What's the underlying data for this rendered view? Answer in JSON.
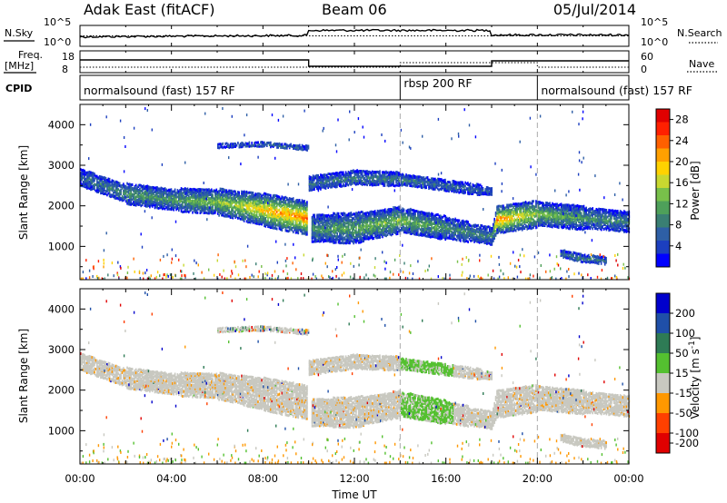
{
  "header": {
    "station": "Adak East (fitACF)",
    "beam": "Beam 06",
    "date": "05/Jul/2014"
  },
  "strip": {
    "nsky_label": "N.Sky",
    "nsky_ticks": [
      "10^5",
      "10^0"
    ],
    "nsearch_label": "N.Search",
    "nsearch_ticks": [
      "10^5",
      "10^0"
    ],
    "freq_label": "Freq.",
    "freq_unit": "[MHz]",
    "freq_ticks": [
      "18",
      "8"
    ],
    "nave_label": "Nave",
    "nave_ticks": [
      "60",
      "0"
    ],
    "cpid_label": "CPID",
    "cpid_modes": [
      {
        "text": "normalsound (fast) 157 RF",
        "start": 0,
        "end": 14
      },
      {
        "text": "rbsp 200 RF",
        "start": 14,
        "end": 20
      },
      {
        "text": "normalsound (fast) 157 RF",
        "start": 20,
        "end": 24
      }
    ]
  },
  "chart_data": [
    {
      "type": "heatmap",
      "parameter": "power",
      "title": "",
      "xlabel": "Time UT",
      "ylabel": "Slant Range [km]",
      "xlim_hours": [
        0,
        24
      ],
      "ylim_km": [
        180,
        4500
      ],
      "x_ticks": [
        "00:00",
        "04:00",
        "08:00",
        "12:00",
        "16:00",
        "20:00",
        "00:00"
      ],
      "y_ticks": [
        "1000",
        "2000",
        "3000",
        "4000"
      ],
      "colorbar": {
        "label": "Power [dB]",
        "ticks": [
          "4",
          "8",
          "12",
          "16",
          "20",
          "24",
          "28"
        ],
        "range": [
          0,
          30
        ],
        "scale": [
          "#0000ff",
          "#1c3fbf",
          "#2e5fa6",
          "#3a7f73",
          "#4ea05a",
          "#78c04a",
          "#c8d830",
          "#ffd200",
          "#ffa000",
          "#ff6000",
          "#ff2000",
          "#e00000"
        ]
      },
      "echo_bands": [
        {
          "id": "main",
          "t": [
            0,
            2,
            4,
            6,
            8,
            9.9,
            10.1,
            12,
            14,
            16,
            18,
            18.2,
            20,
            22,
            24
          ],
          "r": [
            2700,
            2300,
            2150,
            2100,
            1900,
            1700,
            1450,
            1450,
            1650,
            1450,
            1250,
            1650,
            1800,
            1700,
            1600
          ],
          "w": [
            180,
            220,
            250,
            300,
            380,
            420,
            330,
            350,
            300,
            260,
            180,
            330,
            300,
            260,
            220
          ],
          "pk": [
            6,
            10,
            10,
            14,
            20,
            24,
            10,
            12,
            14,
            10,
            8,
            24,
            14,
            10,
            8
          ]
        },
        {
          "id": "upper",
          "t": [
            10,
            12,
            14,
            16,
            18
          ],
          "r": [
            2550,
            2700,
            2650,
            2500,
            2350
          ],
          "w": [
            170,
            180,
            140,
            130,
            90
          ],
          "pk": [
            6,
            8,
            8,
            6,
            5
          ]
        },
        {
          "id": "top",
          "t": [
            6,
            8,
            10
          ],
          "r": [
            3480,
            3520,
            3420
          ],
          "w": [
            50,
            60,
            50
          ],
          "pk": [
            4,
            6,
            4
          ]
        },
        {
          "id": "late",
          "t": [
            21,
            22,
            23
          ],
          "r": [
            820,
            700,
            650
          ],
          "w": [
            80,
            90,
            70
          ],
          "pk": [
            6,
            8,
            6
          ]
        }
      ]
    },
    {
      "type": "heatmap",
      "parameter": "velocity",
      "title": "",
      "xlabel": "Time UT",
      "ylabel": "Slant Range [km]",
      "xlim_hours": [
        0,
        24
      ],
      "ylim_km": [
        180,
        4500
      ],
      "x_ticks": [
        "00:00",
        "04:00",
        "08:00",
        "12:00",
        "16:00",
        "20:00",
        "00:00"
      ],
      "y_ticks": [
        "1000",
        "2000",
        "3000",
        "4000"
      ],
      "colorbar": {
        "label": "Velocity [m s^-1]",
        "ticks": [
          "200",
          "100",
          "50",
          "15",
          "-15",
          "-50",
          "-100",
          "-200"
        ],
        "scale": [
          "#0000cc",
          "#1f4fa8",
          "#2e7b55",
          "#54c030",
          "#c8c8c0",
          "#ff9800",
          "#ff4000",
          "#e00000"
        ]
      },
      "dominant_colour": "#c8c8c0"
    }
  ]
}
